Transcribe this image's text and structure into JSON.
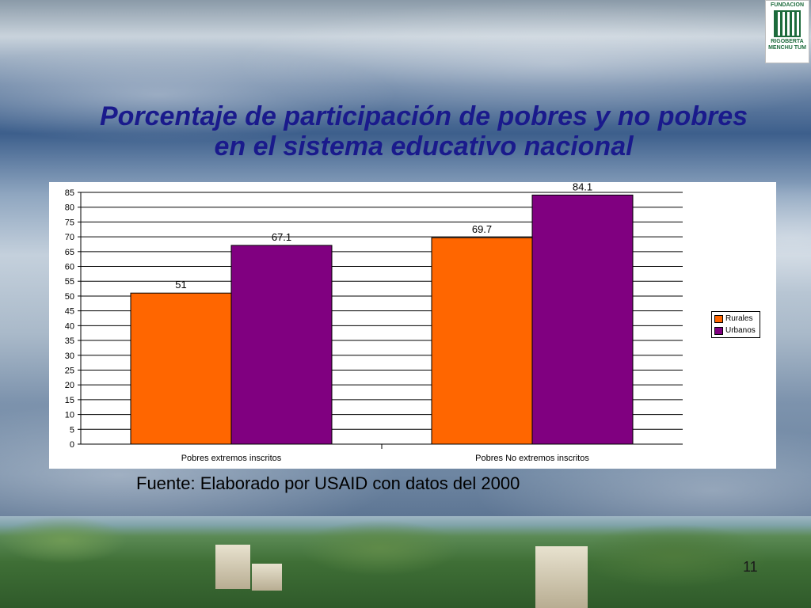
{
  "slide": {
    "title_line1": "Porcentaje de participación de pobres y no pobres",
    "title_line2": "en  el sistema educativo nacional",
    "source": "Fuente: Elaborado por USAID con datos del 2000",
    "page_number": "11",
    "logo_line1": "FUNDACION",
    "logo_line2": "RIGOBERTA",
    "logo_line3": "MENCHU TUM"
  },
  "colors": {
    "rurales": "#ff6600",
    "urbanos": "#800080",
    "title": "#1a1a8c"
  },
  "chart_data": {
    "type": "bar",
    "title": "",
    "xlabel": "",
    "ylabel": "",
    "categories": [
      "Pobres extremos inscritos",
      "Pobres No extremos inscritos"
    ],
    "series": [
      {
        "name": "Rurales",
        "values": [
          51,
          69.7
        ]
      },
      {
        "name": "Urbanos",
        "values": [
          67.1,
          84.1
        ]
      }
    ],
    "ylim": [
      0,
      85
    ],
    "yticks": [
      0,
      5,
      10,
      15,
      20,
      25,
      30,
      35,
      40,
      45,
      50,
      55,
      60,
      65,
      70,
      75,
      80,
      85
    ],
    "grid": true,
    "legend": "right",
    "data_labels": true
  }
}
